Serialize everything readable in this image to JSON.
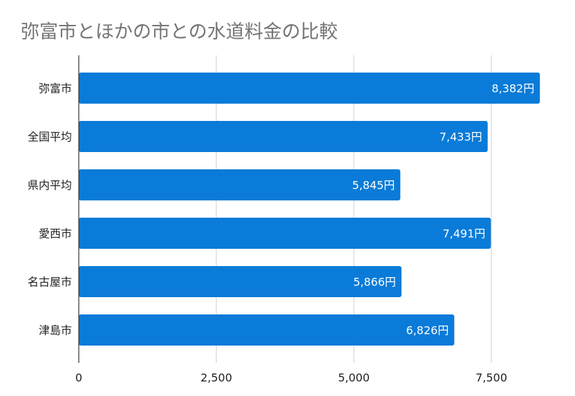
{
  "chart_data": {
    "type": "bar",
    "orientation": "horizontal",
    "title": "弥富市とほかの市との水道料金の比較",
    "categories": [
      "弥富市",
      "全国平均",
      "県内平均",
      "愛西市",
      "名古屋市",
      "津島市"
    ],
    "values": [
      8382,
      7433,
      5845,
      7491,
      5866,
      6826
    ],
    "data_labels": [
      "8,382円",
      "7,433円",
      "5,845円",
      "7,491円",
      "5,866円",
      "6,826円"
    ],
    "xlim": [
      0,
      8600
    ],
    "x_ticks": [
      0,
      2500,
      5000,
      7500
    ],
    "x_tick_labels": [
      "0",
      "2,500",
      "5,000",
      "7,500"
    ],
    "grid": "vertical",
    "legend": "none",
    "bar_color": "#0a7bd8"
  }
}
